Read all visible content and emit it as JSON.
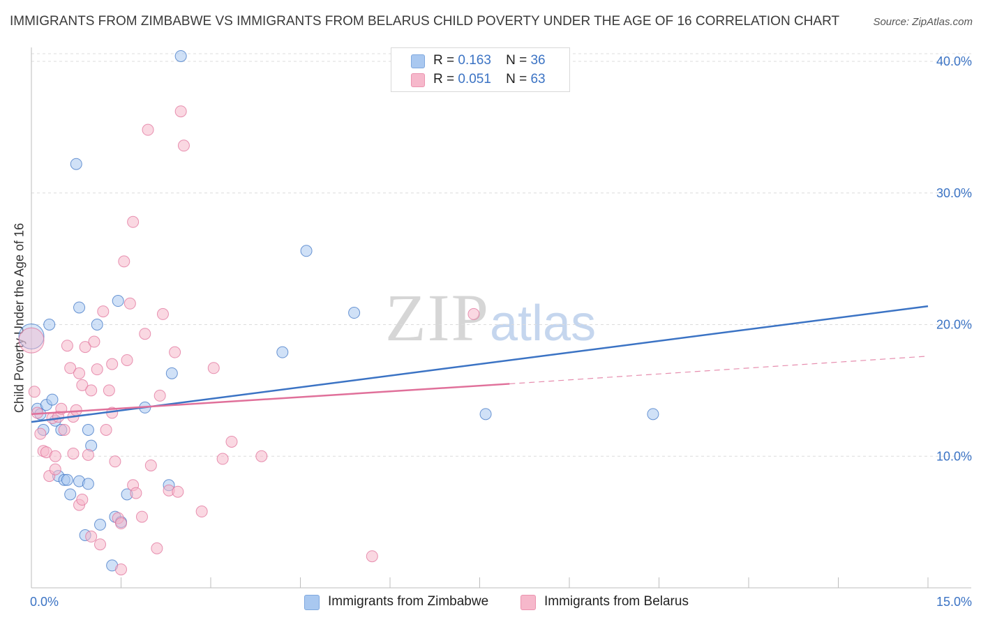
{
  "title": "IMMIGRANTS FROM ZIMBABWE VS IMMIGRANTS FROM BELARUS CHILD POVERTY UNDER THE AGE OF 16 CORRELATION CHART",
  "source": "Source: ZipAtlas.com",
  "watermark": {
    "zip": "ZIP",
    "atlas": "atlas"
  },
  "legend": {
    "r_label": "R =",
    "n_label": "N =",
    "rows": [
      {
        "r": "0.163",
        "n": "36",
        "color": "#a9c8f0"
      },
      {
        "r": "0.051",
        "n": "63",
        "color": "#f6b8cb"
      }
    ]
  },
  "bottom_legend": [
    {
      "label": "Immigrants from Zimbabwe",
      "color": "#a9c8f0"
    },
    {
      "label": "Immigrants from Belarus",
      "color": "#f6b8cb"
    }
  ],
  "chart_data": {
    "type": "scatter",
    "title": "IMMIGRANTS FROM ZIMBABWE VS IMMIGRANTS FROM BELARUS CHILD POVERTY UNDER THE AGE OF 16 CORRELATION CHART",
    "xlabel": "",
    "ylabel": "Child Poverty Under the Age of 16",
    "xlim": [
      0,
      15
    ],
    "ylim": [
      0,
      40
    ],
    "x_tick_labels": [
      "0.0%",
      "15.0%"
    ],
    "y_tick_labels": [
      "10.0%",
      "20.0%",
      "30.0%",
      "40.0%"
    ],
    "y_ticks": [
      10,
      20,
      30,
      40
    ],
    "grid": true,
    "legend_position": "top-center",
    "series": [
      {
        "name": "Immigrants from Zimbabwe",
        "color": "#3b73c4",
        "fill": "#a9c8f0",
        "r": 0.163,
        "n": 36,
        "trend": {
          "x": [
            0,
            15
          ],
          "y": [
            12.6,
            21.4
          ],
          "dashed_after": null
        },
        "points": [
          [
            0.1,
            13.6
          ],
          [
            0.15,
            13.2
          ],
          [
            0.2,
            12.0
          ],
          [
            0.25,
            13.9
          ],
          [
            0.3,
            20.0
          ],
          [
            0.35,
            14.3
          ],
          [
            0.4,
            12.7
          ],
          [
            0.45,
            8.5
          ],
          [
            0.5,
            12.0
          ],
          [
            0.55,
            8.2
          ],
          [
            0.6,
            8.2
          ],
          [
            0.65,
            7.1
          ],
          [
            0.75,
            32.2
          ],
          [
            0.8,
            21.3
          ],
          [
            0.8,
            8.1
          ],
          [
            0.9,
            4.0
          ],
          [
            0.95,
            12.0
          ],
          [
            0.95,
            7.9
          ],
          [
            1.0,
            10.8
          ],
          [
            1.1,
            20.0
          ],
          [
            1.15,
            4.8
          ],
          [
            1.35,
            1.7
          ],
          [
            1.4,
            5.4
          ],
          [
            1.45,
            21.8
          ],
          [
            1.5,
            5.0
          ],
          [
            1.6,
            7.1
          ],
          [
            1.9,
            13.7
          ],
          [
            2.3,
            7.8
          ],
          [
            2.35,
            16.3
          ],
          [
            2.5,
            40.4
          ],
          [
            4.2,
            17.9
          ],
          [
            4.6,
            25.6
          ],
          [
            5.4,
            20.9
          ],
          [
            7.6,
            13.2
          ],
          [
            10.4,
            13.2
          ],
          [
            0.0,
            19.1
          ]
        ]
      },
      {
        "name": "Immigrants from Belarus",
        "color": "#e0709a",
        "fill": "#f6b8cb",
        "r": 0.051,
        "n": 63,
        "trend": {
          "x": [
            0,
            8.0
          ],
          "y": [
            13.2,
            15.5
          ],
          "dashed_to": [
            15,
            17.6
          ]
        },
        "points": [
          [
            0.0,
            18.8
          ],
          [
            0.05,
            14.9
          ],
          [
            0.1,
            13.3
          ],
          [
            0.15,
            11.7
          ],
          [
            0.2,
            10.4
          ],
          [
            0.25,
            10.3
          ],
          [
            0.3,
            8.5
          ],
          [
            0.35,
            12.9
          ],
          [
            0.4,
            9.0
          ],
          [
            0.4,
            10.0
          ],
          [
            0.45,
            13.0
          ],
          [
            0.5,
            13.6
          ],
          [
            0.55,
            12.0
          ],
          [
            0.6,
            18.4
          ],
          [
            0.65,
            16.7
          ],
          [
            0.7,
            13.0
          ],
          [
            0.7,
            10.2
          ],
          [
            0.75,
            13.5
          ],
          [
            0.8,
            16.3
          ],
          [
            0.8,
            6.3
          ],
          [
            0.85,
            6.7
          ],
          [
            0.85,
            15.4
          ],
          [
            0.9,
            18.3
          ],
          [
            0.95,
            10.1
          ],
          [
            1.0,
            3.9
          ],
          [
            1.0,
            15.0
          ],
          [
            1.05,
            18.7
          ],
          [
            1.1,
            16.6
          ],
          [
            1.15,
            3.3
          ],
          [
            1.2,
            21.0
          ],
          [
            1.25,
            12.0
          ],
          [
            1.3,
            15.0
          ],
          [
            1.35,
            17.0
          ],
          [
            1.35,
            13.3
          ],
          [
            1.4,
            9.6
          ],
          [
            1.45,
            5.3
          ],
          [
            1.5,
            4.9
          ],
          [
            1.5,
            1.4
          ],
          [
            1.55,
            24.8
          ],
          [
            1.6,
            17.3
          ],
          [
            1.65,
            21.6
          ],
          [
            1.7,
            27.8
          ],
          [
            1.7,
            7.8
          ],
          [
            1.75,
            7.2
          ],
          [
            1.85,
            5.4
          ],
          [
            1.9,
            19.3
          ],
          [
            1.95,
            34.8
          ],
          [
            2.0,
            9.3
          ],
          [
            2.1,
            3.0
          ],
          [
            2.15,
            14.6
          ],
          [
            2.2,
            20.8
          ],
          [
            2.3,
            7.4
          ],
          [
            2.4,
            17.9
          ],
          [
            2.45,
            7.3
          ],
          [
            2.5,
            36.2
          ],
          [
            2.55,
            33.6
          ],
          [
            2.85,
            5.8
          ],
          [
            3.05,
            16.7
          ],
          [
            3.2,
            9.8
          ],
          [
            3.35,
            11.1
          ],
          [
            3.85,
            10.0
          ],
          [
            5.7,
            2.4
          ],
          [
            7.4,
            20.8
          ]
        ]
      }
    ]
  }
}
